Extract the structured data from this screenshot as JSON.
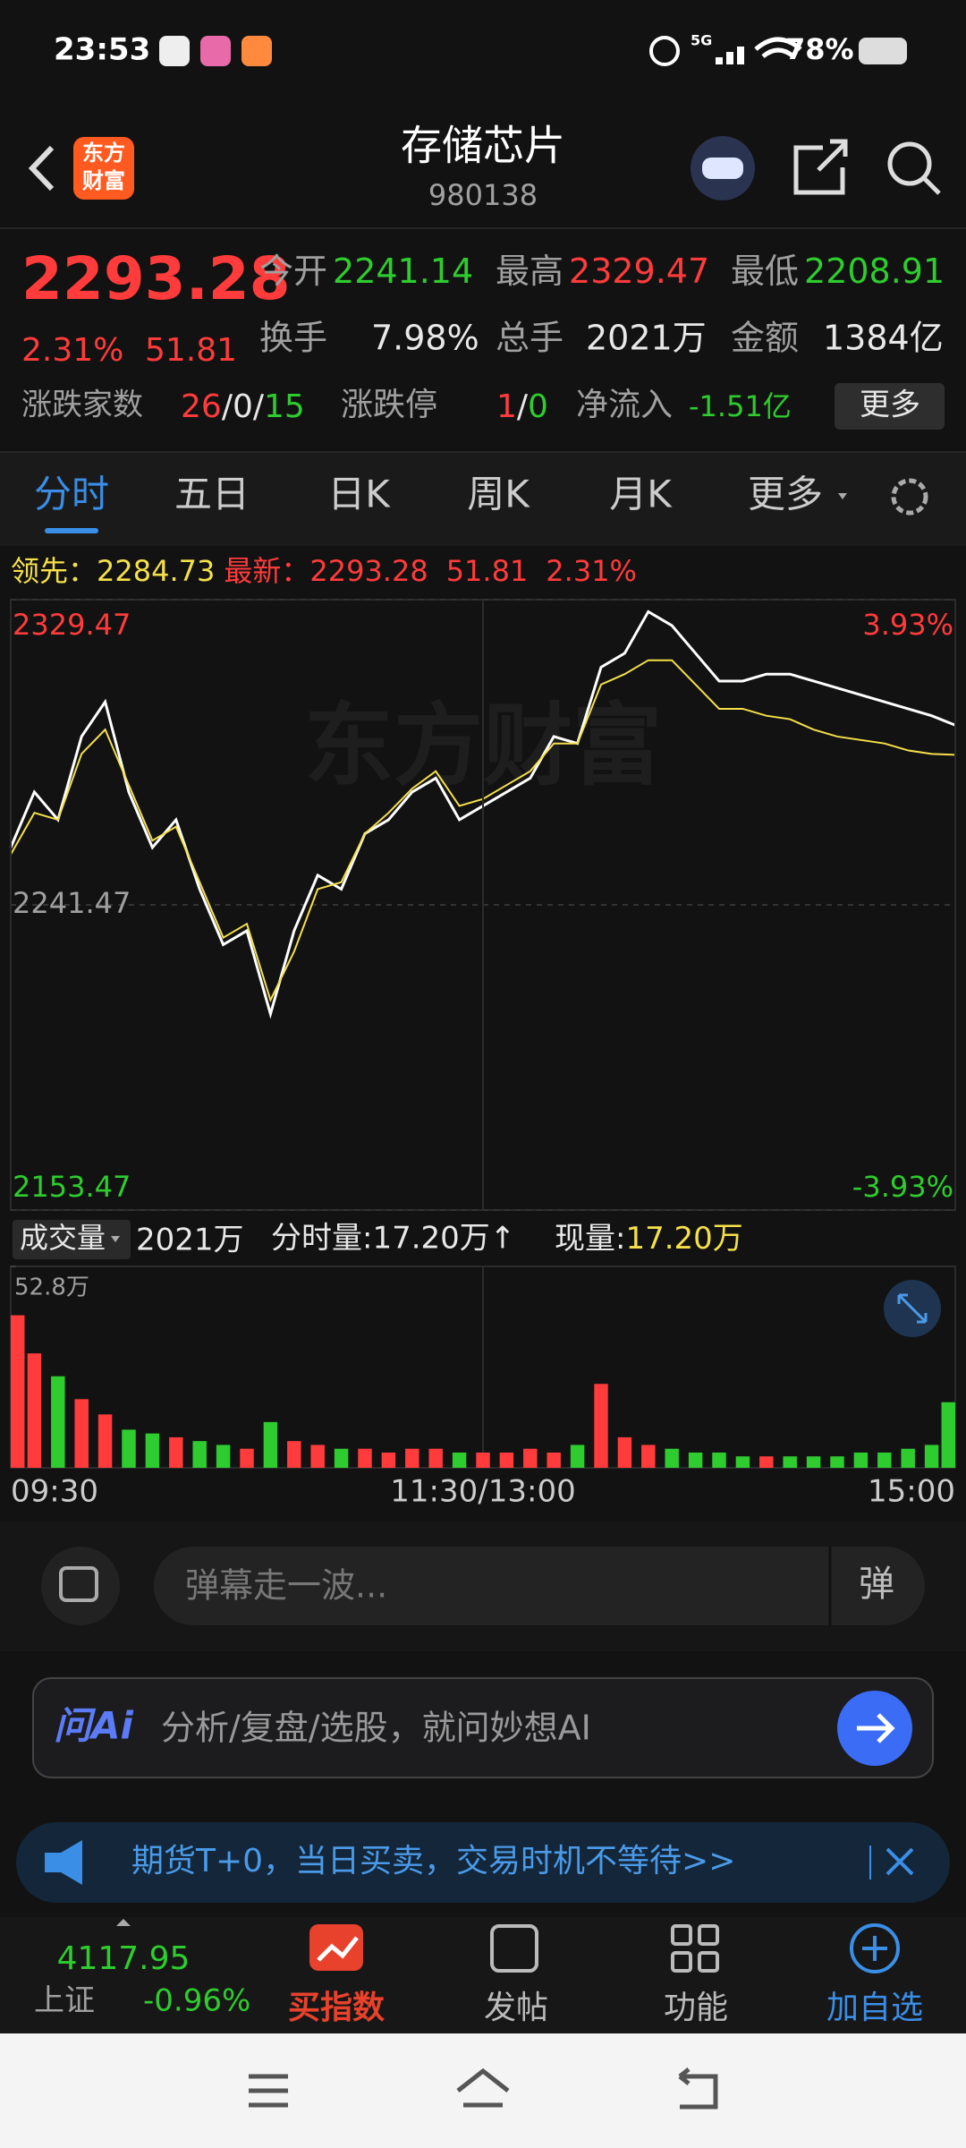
{
  "status": {
    "time": "23:53",
    "network": "5G",
    "battery": "78%"
  },
  "header": {
    "logo_top": "东方",
    "logo_bottom": "财富",
    "title": "存储芯片",
    "code": "980138"
  },
  "quote": {
    "price": "2293.28",
    "change_pct": "2.31%",
    "change": "51.81",
    "open_label": "今开",
    "open": "2241.14",
    "high_label": "最高",
    "high": "2329.47",
    "low_label": "最低",
    "low": "2208.91",
    "turnover_label": "换手",
    "turnover": "7.98%",
    "volume_label": "总手",
    "volume": "2021万",
    "amount_label": "金额",
    "amount": "1384亿",
    "breadth_label": "涨跌家数",
    "breadth": [
      "26",
      "/",
      "0",
      "/",
      "15"
    ],
    "limit_label": "涨跌停",
    "limit": [
      "1",
      "/",
      "0"
    ],
    "netflow_label": "净流入",
    "netflow": "-1.51亿",
    "more": "更多"
  },
  "tabs": [
    "分时",
    "五日",
    "日K",
    "周K",
    "月K",
    "更多"
  ],
  "chart_data": [
    {
      "type": "line",
      "watermark": "东方财富",
      "legend": {
        "lead_label": "领先：",
        "lead": "2284.73",
        "latest_label": "最新：",
        "latest": "2293.28",
        "change": "51.81",
        "change_pct": "2.31%"
      },
      "x": [
        0,
        6,
        12,
        18,
        24,
        30,
        36,
        42,
        48,
        54,
        60,
        66,
        72,
        78,
        84,
        90,
        96,
        102,
        108,
        114,
        120,
        126,
        132,
        138,
        144,
        150,
        156,
        162,
        168,
        174,
        180,
        186,
        192,
        198,
        204,
        210,
        216,
        222,
        228,
        234,
        240
      ],
      "xlim": [
        0,
        240
      ],
      "series": [
        {
          "color": "#ffffff",
          "values": [
            2258,
            2274,
            2266,
            2290,
            2300,
            2274,
            2258,
            2266,
            2246,
            2230,
            2234,
            2210,
            2234,
            2250,
            2246,
            2262,
            2266,
            2274,
            2278,
            2266,
            2270,
            2274,
            2278,
            2290,
            2288,
            2310,
            2314,
            2326,
            2322,
            2314,
            2306,
            2306,
            2308,
            2308,
            2306,
            2304,
            2302,
            2300,
            2298,
            2296,
            2293.28
          ]
        },
        {
          "color": "#f5e04a",
          "values": [
            2256,
            2268,
            2266,
            2285,
            2292,
            2276,
            2260,
            2264,
            2248,
            2232,
            2236,
            2214,
            2228,
            2246,
            2248,
            2262,
            2268,
            2275,
            2280,
            2270,
            2272,
            2276,
            2280,
            2288,
            2288,
            2305,
            2308,
            2312,
            2312,
            2305,
            2298,
            2298,
            2296,
            2295,
            2292,
            2290,
            2289,
            2288,
            2286,
            2285,
            2284.73
          ]
        }
      ],
      "ylim": [
        2153.47,
        2329.47
      ],
      "yticks": [
        2329.47,
        2241.47,
        2153.47
      ],
      "y2lim": [
        -3.93,
        3.93
      ],
      "y2ticks": [
        {
          "value": 3.93,
          "label": "3.93%"
        },
        {
          "value": -3.93,
          "label": "-3.93%"
        }
      ],
      "grid": true
    },
    {
      "type": "bar",
      "title": "成交量",
      "total": "2021万",
      "interval_volume": "分时量:17.20万↑",
      "current_label": "现量:",
      "current": "17.20万",
      "x": [
        0,
        6,
        12,
        18,
        24,
        30,
        36,
        42,
        48,
        54,
        60,
        66,
        72,
        78,
        84,
        90,
        96,
        102,
        108,
        114,
        120,
        126,
        132,
        138,
        144,
        150,
        156,
        162,
        168,
        174,
        180,
        186,
        192,
        198,
        204,
        210,
        216,
        222,
        228,
        234,
        240
      ],
      "xlim": [
        0,
        240
      ],
      "xticks": [
        {
          "value": 0,
          "label": "09:30"
        },
        {
          "value": 120,
          "label": "11:30/13:00"
        },
        {
          "value": 240,
          "label": "15:00"
        }
      ],
      "values": [
        40,
        30,
        24,
        18,
        14,
        10,
        9,
        8,
        7,
        6,
        5,
        12,
        7,
        6,
        5,
        5,
        4,
        5,
        5,
        4,
        4,
        4,
        5,
        4,
        6,
        22,
        8,
        6,
        5,
        4,
        4,
        3,
        3,
        3,
        3,
        3,
        4,
        4,
        5,
        6,
        17.2
      ],
      "colors": [
        "#ff3b3b",
        "#ff3b3b",
        "#2ecc2e",
        "#ff3b3b",
        "#ff3b3b",
        "#2ecc2e",
        "#2ecc2e",
        "#ff3b3b",
        "#2ecc2e",
        "#2ecc2e",
        "#ff3b3b",
        "#2ecc2e",
        "#ff3b3b",
        "#ff3b3b",
        "#2ecc2e",
        "#ff3b3b",
        "#ff3b3b",
        "#ff3b3b",
        "#ff3b3b",
        "#2ecc2e",
        "#ff3b3b",
        "#ff3b3b",
        "#ff3b3b",
        "#ff3b3b",
        "#2ecc2e",
        "#ff3b3b",
        "#ff3b3b",
        "#ff3b3b",
        "#2ecc2e",
        "#2ecc2e",
        "#2ecc2e",
        "#2ecc2e",
        "#ff3b3b",
        "#2ecc2e",
        "#2ecc2e",
        "#2ecc2e",
        "#2ecc2e",
        "#2ecc2e",
        "#2ecc2e",
        "#2ecc2e",
        "#2ecc2e"
      ],
      "ylim": [
        0,
        52.8
      ],
      "yticks": [
        {
          "value": 52.8,
          "label": "52.8万"
        }
      ]
    }
  ],
  "comment": {
    "placeholder": "弹幕走一波..."
  },
  "ai": {
    "logo": "问Ai",
    "placeholder": "分析/复盘/选股，就问妙想AI"
  },
  "banner": {
    "text": "期货T+0，当日买卖，交易时机不等待>>"
  },
  "nav": {
    "index_value": "4117.95",
    "index_name": "上证",
    "index_change": "-0.96%",
    "buy": "买指数",
    "post": "发帖",
    "func": "功能",
    "watch": "加自选"
  }
}
